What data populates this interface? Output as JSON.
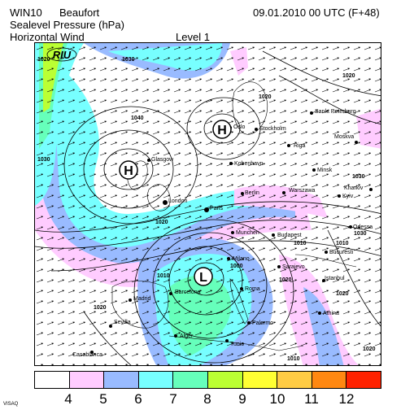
{
  "header": {
    "model": "WIN10",
    "scale": "Beaufort",
    "valid_time": "09.01.2010 00 UTC (F+48)",
    "field_1": "Sealevel Pressure (hPa)",
    "field_2": "Horizontal Wind",
    "level": "Level  1"
  },
  "logo_text": "RIU",
  "pressure_centers": [
    {
      "type": "H",
      "label": "H"
    },
    {
      "type": "H",
      "label": "H"
    },
    {
      "type": "L",
      "label": "L"
    }
  ],
  "isobar_labels": [
    "1020",
    "1030",
    "1040",
    "1030",
    "1020",
    "1020",
    "1030",
    "1020",
    "1030",
    "1010",
    "1010",
    "1020",
    "1020",
    "1020",
    "1010",
    "1020",
    "1010",
    "1000"
  ],
  "cities": [
    "Glasgow",
    "London",
    "Paris",
    "Kobenhavn",
    "Oslo",
    "Stockholm",
    "Sankt Peterburg",
    "Moskva",
    "Riga",
    "Minsk",
    "Berlin",
    "Warszawa",
    "Kyiv",
    "Kharkiv",
    "Munchen",
    "Budapest",
    "Odessa",
    "Bucuresti",
    "Milano",
    "Sarajevo",
    "Istanbul",
    "Roma",
    "Barcelona",
    "Madrid",
    "Sevilla",
    "Casablanca",
    "Alger",
    "Tunis",
    "Palermo",
    "Athina"
  ],
  "legend": {
    "colors": [
      "#ffffff",
      "#ffccff",
      "#99bbff",
      "#77ffff",
      "#66ffbb",
      "#bbff33",
      "#ffff33",
      "#ffcc44",
      "#ff8811",
      "#ff2200"
    ],
    "labels": [
      "4",
      "5",
      "6",
      "7",
      "8",
      "9",
      "10",
      "11",
      "12"
    ]
  },
  "footer": "VISAQ"
}
